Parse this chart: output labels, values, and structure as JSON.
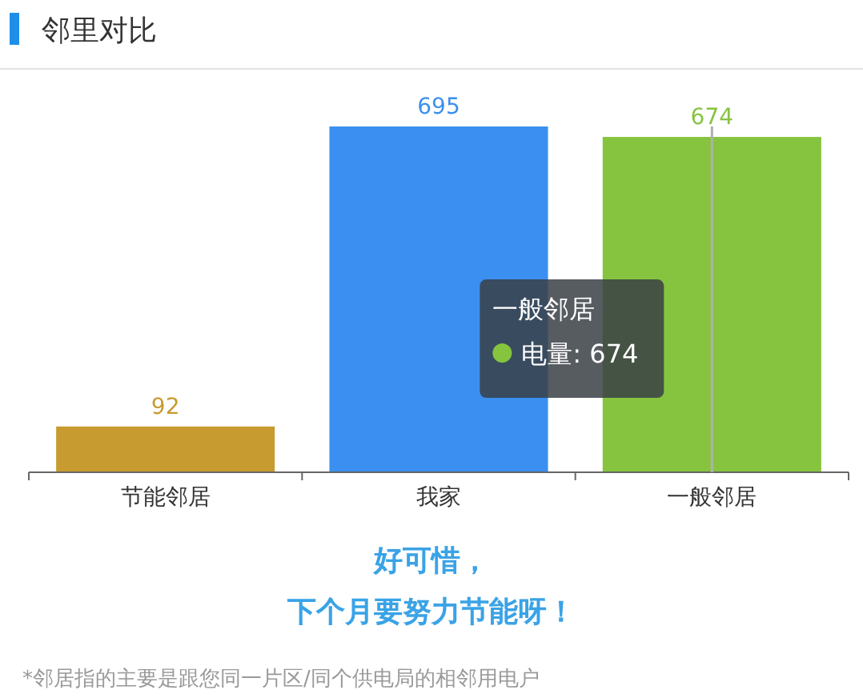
{
  "chart_data": {
    "type": "bar",
    "title": "邻里对比",
    "categories": [
      "节能邻居",
      "我家",
      "一般邻居"
    ],
    "values": [
      92,
      695,
      674
    ],
    "colors": [
      "#c89b30",
      "#3b8ff0",
      "#86c43f"
    ],
    "data_labels": true,
    "ref_lines": [
      {
        "axis": "x",
        "value": "一般邻居",
        "color": "#b0b0b0"
      }
    ],
    "annotations": [
      "一般邻居",
      "电量: 674",
      "好可惜，",
      "下个月要努力节能呀！",
      "*邻居指的主要是跟您同一片区/同个供电局的相邻用电户"
    ]
  }
}
